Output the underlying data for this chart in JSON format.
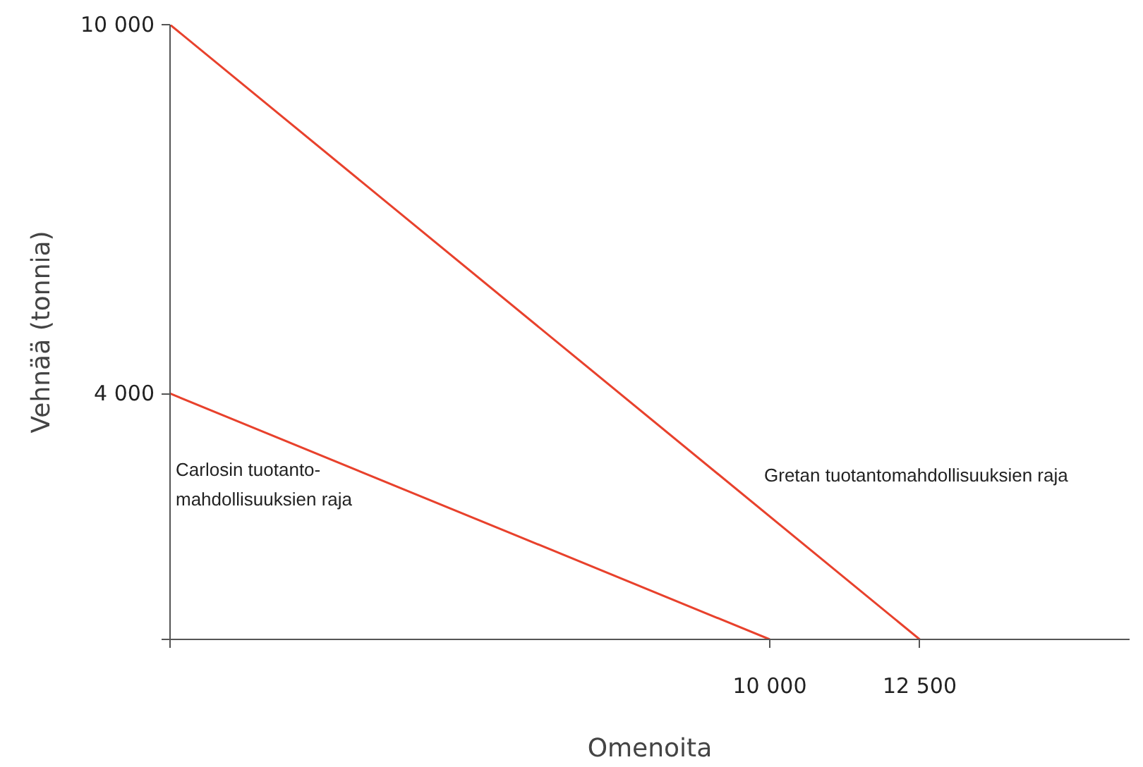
{
  "chart_data": {
    "type": "line",
    "xlabel": "Omenoita",
    "ylabel": "Vehnää (tonnia)",
    "xlim": [
      0,
      16000
    ],
    "ylim": [
      0,
      10000
    ],
    "xticks": [
      {
        "value": 0,
        "label": null
      },
      {
        "value": 10000,
        "label": "10 000"
      },
      {
        "value": 12500,
        "label": "12 500"
      }
    ],
    "yticks": [
      {
        "value": 0,
        "label": null
      },
      {
        "value": 4000,
        "label": "4 000"
      },
      {
        "value": 10000,
        "label": "10 000"
      }
    ],
    "series": [
      {
        "color": "#e8412c",
        "x": [
          0,
          10000
        ],
        "values": [
          4000,
          0
        ]
      },
      {
        "color": "#e8412c",
        "x": [
          0,
          12500
        ],
        "values": [
          10000,
          0
        ]
      }
    ],
    "annotations": [
      "Carlosin tuotanto-\nmahdollisuuksien raja",
      "Gretan tuotantomahdollisuuksien raja"
    ],
    "grid": false,
    "marker": "none",
    "line_style": "solid"
  }
}
